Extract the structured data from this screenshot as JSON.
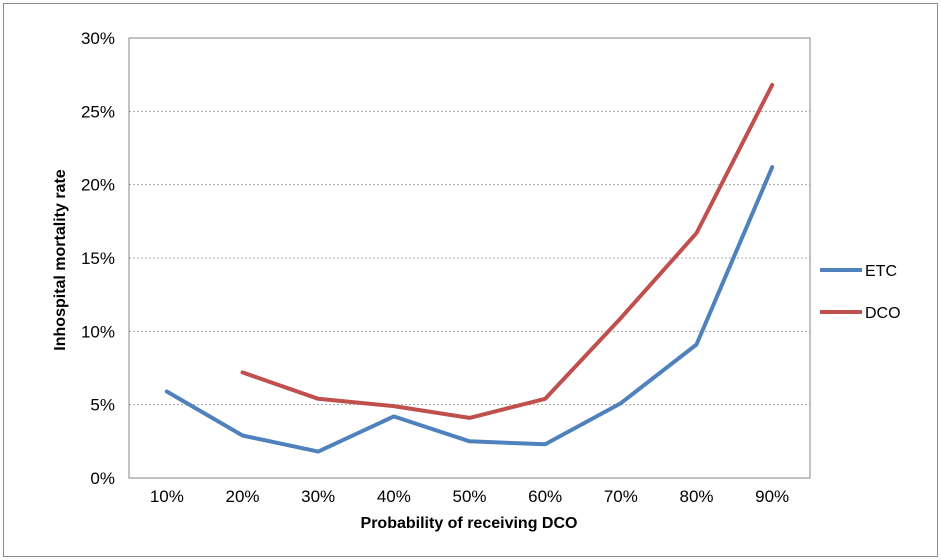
{
  "chart_data": {
    "type": "line",
    "categories": [
      "10%",
      "20%",
      "30%",
      "40%",
      "50%",
      "60%",
      "70%",
      "80%",
      "90%"
    ],
    "series": [
      {
        "name": "ETC",
        "color": "#4f81bd",
        "values": [
          5.9,
          2.9,
          1.8,
          4.2,
          2.5,
          2.3,
          5.1,
          9.1,
          21.2
        ]
      },
      {
        "name": "DCO",
        "color": "#c0504d",
        "values": [
          null,
          7.2,
          5.4,
          4.9,
          4.1,
          5.4,
          10.9,
          16.7,
          26.8
        ]
      }
    ],
    "xlabel": "Probability of receiving DCO",
    "ylabel": "Inhospital mortality rate",
    "ylim": [
      0,
      30
    ],
    "yticks": [
      "0%",
      "5%",
      "10%",
      "15%",
      "20%",
      "25%",
      "30%"
    ],
    "grid": "horizontal dashed",
    "legend_position": "right"
  }
}
